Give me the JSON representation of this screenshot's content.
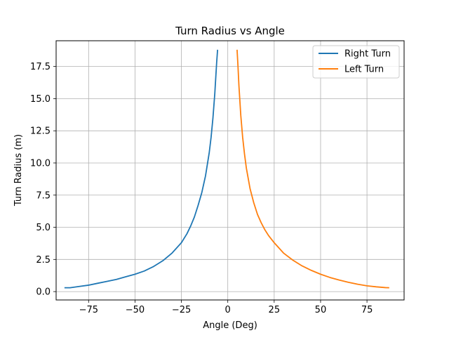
{
  "chart_data": {
    "type": "line",
    "title": "Turn Radius vs Angle",
    "xlabel": "Angle (Deg)",
    "ylabel": "Turn Radius (m)",
    "xlim": [
      -92.5,
      95
    ],
    "ylim": [
      -0.65,
      19.5
    ],
    "xticks": [
      -75,
      -50,
      -25,
      0,
      25,
      50,
      75
    ],
    "xtick_labels": [
      "−75",
      "−50",
      "−25",
      "0",
      "25",
      "50",
      "75"
    ],
    "yticks": [
      0.0,
      2.5,
      5.0,
      7.5,
      10.0,
      12.5,
      15.0,
      17.5
    ],
    "ytick_labels": [
      "0.0",
      "2.5",
      "5.0",
      "7.5",
      "10.0",
      "12.5",
      "15.0",
      "17.5"
    ],
    "grid": true,
    "legend_position": "top-right",
    "series": [
      {
        "name": "Right Turn",
        "color": "#1f77b4",
        "x": [
          -88,
          -85,
          -80,
          -75,
          -70,
          -65,
          -60,
          -55,
          -50,
          -45,
          -40,
          -35,
          -30,
          -25,
          -22,
          -20,
          -18,
          -16,
          -14,
          -12,
          -10,
          -9,
          -8,
          -7,
          -6,
          -5.5
        ],
        "y": [
          0.3,
          0.3,
          0.4,
          0.5,
          0.65,
          0.8,
          0.95,
          1.15,
          1.35,
          1.6,
          1.95,
          2.4,
          3.0,
          3.8,
          4.5,
          5.1,
          5.8,
          6.7,
          7.7,
          9.0,
          10.8,
          12.0,
          13.5,
          15.4,
          17.8,
          18.8
        ]
      },
      {
        "name": "Left Turn",
        "color": "#ff7f0e",
        "x": [
          5,
          5.5,
          6,
          7,
          8,
          9,
          10,
          12,
          14,
          16,
          18,
          20,
          22,
          25,
          30,
          35,
          40,
          45,
          50,
          55,
          60,
          65,
          70,
          75,
          80,
          85,
          87
        ],
        "y": [
          18.8,
          17.5,
          16.0,
          13.7,
          12.0,
          10.7,
          9.6,
          8.0,
          6.9,
          6.0,
          5.35,
          4.8,
          4.35,
          3.8,
          3.0,
          2.45,
          2.0,
          1.65,
          1.35,
          1.1,
          0.9,
          0.72,
          0.57,
          0.45,
          0.37,
          0.31,
          0.3
        ]
      }
    ]
  }
}
